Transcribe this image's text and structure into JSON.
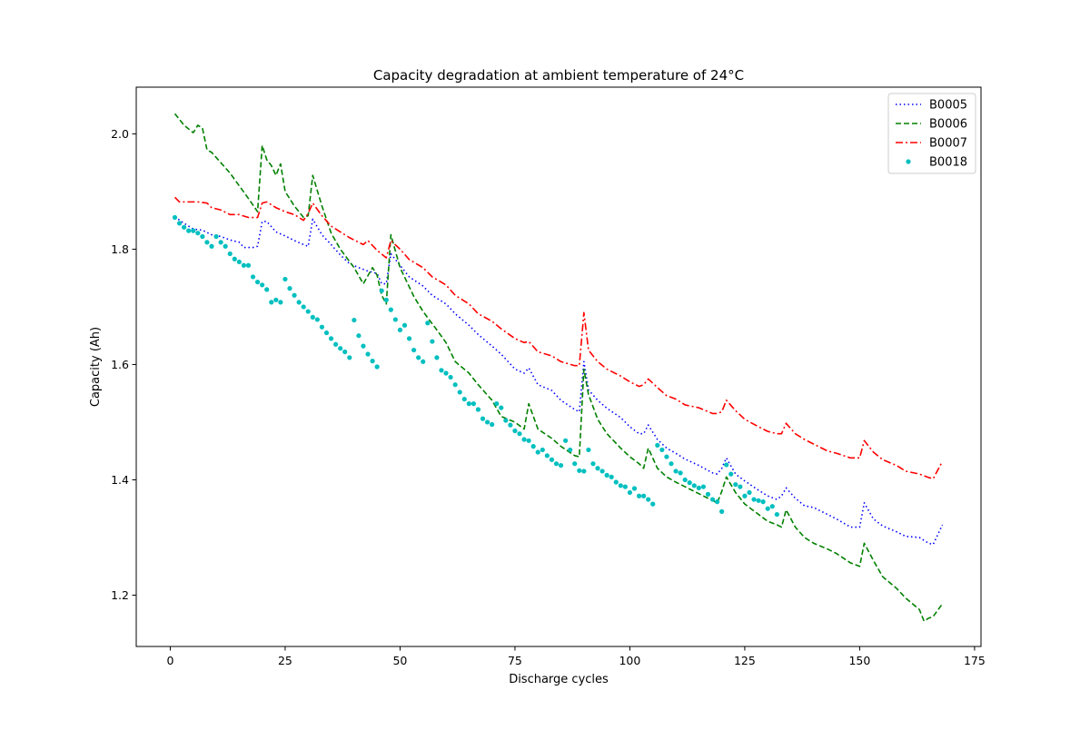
{
  "chart_data": {
    "type": "line",
    "title": "Capacity degradation at ambient temperature of 24°C",
    "xlabel": "Discharge cycles",
    "ylabel": "Capacity (Ah)",
    "xlim": [
      -7.4,
      176.4
    ],
    "ylim": [
      1.111,
      2.081
    ],
    "xticks": [
      0,
      25,
      50,
      75,
      100,
      125,
      150,
      175
    ],
    "yticks": [
      1.2,
      1.4,
      1.6,
      1.8,
      2.0
    ],
    "yticks_labels": [
      "1.2",
      "1.4",
      "1.6",
      "1.8",
      "2.0"
    ],
    "grid": false,
    "legend_position": "top-right",
    "series": [
      {
        "name": "B0005",
        "color": "#0000ff",
        "style": "dotted",
        "x": [
          1,
          3,
          5,
          7,
          9,
          11,
          13,
          15,
          16,
          18,
          19,
          20,
          21,
          23,
          25,
          27,
          29,
          30,
          31,
          33,
          35,
          37,
          39,
          41,
          43,
          45,
          46,
          47,
          48,
          50,
          52,
          55,
          57,
          60,
          62,
          65,
          67,
          70,
          72,
          75,
          77,
          78,
          80,
          83,
          85,
          88,
          89,
          90,
          91,
          93,
          95,
          98,
          100,
          102,
          103,
          104,
          106,
          108,
          110,
          112,
          115,
          118,
          119,
          120,
          121,
          123,
          125,
          128,
          130,
          132,
          133,
          134,
          136,
          138,
          140,
          143,
          145,
          148,
          150,
          151,
          153,
          155,
          158,
          160,
          163,
          165,
          166,
          168
        ],
        "y": [
          1.856,
          1.845,
          1.835,
          1.833,
          1.825,
          1.822,
          1.816,
          1.812,
          1.803,
          1.803,
          1.805,
          1.848,
          1.848,
          1.83,
          1.823,
          1.815,
          1.808,
          1.805,
          1.852,
          1.825,
          1.808,
          1.79,
          1.775,
          1.768,
          1.762,
          1.758,
          1.74,
          1.74,
          1.792,
          1.772,
          1.752,
          1.736,
          1.72,
          1.705,
          1.688,
          1.668,
          1.652,
          1.632,
          1.618,
          1.592,
          1.585,
          1.594,
          1.565,
          1.555,
          1.538,
          1.522,
          1.518,
          1.605,
          1.556,
          1.538,
          1.524,
          1.508,
          1.492,
          1.48,
          1.48,
          1.495,
          1.47,
          1.455,
          1.446,
          1.436,
          1.425,
          1.412,
          1.41,
          1.42,
          1.438,
          1.41,
          1.398,
          1.382,
          1.372,
          1.366,
          1.372,
          1.386,
          1.368,
          1.355,
          1.352,
          1.34,
          1.332,
          1.318,
          1.318,
          1.36,
          1.332,
          1.32,
          1.31,
          1.302,
          1.3,
          1.29,
          1.288,
          1.322
        ]
      },
      {
        "name": "B0006",
        "color": "#008000",
        "style": "dashed",
        "x": [
          1,
          2,
          3,
          5,
          6,
          7,
          8,
          9,
          11,
          13,
          15,
          17,
          19,
          20,
          21,
          22,
          23,
          24,
          25,
          27,
          29,
          30,
          31,
          33,
          35,
          37,
          40,
          42,
          44,
          45,
          46,
          47,
          48,
          50,
          53,
          55,
          58,
          60,
          62,
          65,
          67,
          70,
          72,
          75,
          77,
          78,
          80,
          83,
          85,
          88,
          89,
          90,
          91,
          93,
          95,
          98,
          100,
          102,
          103,
          104,
          106,
          108,
          110,
          112,
          115,
          118,
          119,
          120,
          121,
          123,
          125,
          128,
          130,
          132,
          133,
          134,
          136,
          138,
          140,
          143,
          145,
          148,
          150,
          151,
          153,
          155,
          158,
          160,
          163,
          164,
          165,
          166,
          168
        ],
        "y": [
          2.035,
          2.025,
          2.015,
          2.002,
          2.015,
          2.01,
          1.972,
          1.968,
          1.95,
          1.932,
          1.91,
          1.888,
          1.865,
          1.98,
          1.955,
          1.945,
          1.928,
          1.948,
          1.9,
          1.875,
          1.855,
          1.858,
          1.928,
          1.875,
          1.828,
          1.8,
          1.768,
          1.74,
          1.768,
          1.755,
          1.72,
          1.705,
          1.825,
          1.768,
          1.718,
          1.692,
          1.66,
          1.638,
          1.605,
          1.585,
          1.565,
          1.538,
          1.51,
          1.5,
          1.488,
          1.532,
          1.488,
          1.472,
          1.458,
          1.442,
          1.44,
          1.592,
          1.548,
          1.505,
          1.48,
          1.455,
          1.44,
          1.428,
          1.42,
          1.455,
          1.42,
          1.405,
          1.396,
          1.388,
          1.376,
          1.364,
          1.36,
          1.38,
          1.405,
          1.378,
          1.358,
          1.34,
          1.328,
          1.322,
          1.318,
          1.348,
          1.318,
          1.3,
          1.29,
          1.28,
          1.272,
          1.256,
          1.25,
          1.29,
          1.26,
          1.232,
          1.212,
          1.195,
          1.175,
          1.155,
          1.16,
          1.163,
          1.185
        ]
      },
      {
        "name": "B0007",
        "color": "#ff0000",
        "style": "dashdot",
        "x": [
          1,
          2,
          4,
          6,
          8,
          9,
          11,
          13,
          15,
          17,
          19,
          20,
          21,
          23,
          25,
          27,
          29,
          30,
          31,
          33,
          35,
          37,
          39,
          41,
          42,
          43,
          45,
          47,
          48,
          50,
          52,
          55,
          57,
          60,
          62,
          65,
          67,
          70,
          72,
          75,
          77,
          78,
          80,
          83,
          85,
          88,
          89,
          90,
          91,
          93,
          95,
          98,
          100,
          102,
          103,
          104,
          106,
          108,
          110,
          112,
          115,
          118,
          119,
          120,
          121,
          123,
          125,
          128,
          130,
          132,
          133,
          134,
          136,
          138,
          140,
          143,
          145,
          148,
          150,
          151,
          153,
          155,
          158,
          160,
          163,
          165,
          166,
          168
        ],
        "y": [
          1.89,
          1.882,
          1.882,
          1.882,
          1.88,
          1.872,
          1.868,
          1.86,
          1.86,
          1.855,
          1.855,
          1.88,
          1.882,
          1.872,
          1.865,
          1.86,
          1.85,
          1.862,
          1.88,
          1.858,
          1.84,
          1.83,
          1.82,
          1.812,
          1.808,
          1.815,
          1.798,
          1.785,
          1.815,
          1.8,
          1.782,
          1.768,
          1.752,
          1.738,
          1.72,
          1.705,
          1.688,
          1.675,
          1.662,
          1.645,
          1.638,
          1.64,
          1.622,
          1.615,
          1.605,
          1.598,
          1.598,
          1.69,
          1.625,
          1.605,
          1.592,
          1.58,
          1.57,
          1.562,
          1.565,
          1.575,
          1.56,
          1.546,
          1.54,
          1.53,
          1.525,
          1.515,
          1.515,
          1.518,
          1.538,
          1.52,
          1.505,
          1.492,
          1.484,
          1.48,
          1.48,
          1.498,
          1.48,
          1.47,
          1.462,
          1.45,
          1.446,
          1.438,
          1.438,
          1.468,
          1.448,
          1.435,
          1.425,
          1.415,
          1.41,
          1.404,
          1.402,
          1.432
        ]
      },
      {
        "name": "B0018",
        "color": "#00bfbf",
        "style": "points",
        "x": [
          1,
          2,
          3,
          4,
          5,
          6,
          7,
          8,
          9,
          10,
          11,
          12,
          13,
          14,
          15,
          16,
          17,
          18,
          19,
          20,
          21,
          22,
          23,
          24,
          25,
          26,
          27,
          28,
          29,
          30,
          31,
          32,
          33,
          34,
          35,
          36,
          37,
          38,
          39,
          40,
          41,
          42,
          43,
          44,
          45,
          46,
          47,
          48,
          49,
          50,
          51,
          52,
          53,
          54,
          55,
          56,
          57,
          58,
          59,
          60,
          61,
          62,
          63,
          64,
          65,
          66,
          67,
          68,
          69,
          70,
          71,
          72,
          73,
          74,
          75,
          76,
          77,
          78,
          79,
          80,
          81,
          82,
          83,
          84,
          85,
          86,
          87,
          88,
          89,
          90,
          91,
          92,
          93,
          94,
          95,
          96,
          97,
          98,
          99,
          100,
          101,
          102,
          103,
          104,
          105,
          106,
          107,
          108,
          109,
          110,
          111,
          112,
          113,
          114,
          115,
          116,
          117,
          118,
          119,
          120,
          121,
          122,
          123,
          124,
          125,
          126,
          127,
          128,
          129,
          130,
          131,
          132
        ],
        "y": [
          1.855,
          1.845,
          1.838,
          1.832,
          1.832,
          1.828,
          1.822,
          1.812,
          1.805,
          1.822,
          1.812,
          1.805,
          1.792,
          1.783,
          1.778,
          1.772,
          1.772,
          1.752,
          1.743,
          1.738,
          1.73,
          1.708,
          1.712,
          1.708,
          1.748,
          1.732,
          1.72,
          1.708,
          1.7,
          1.692,
          1.682,
          1.678,
          1.665,
          1.655,
          1.645,
          1.635,
          1.628,
          1.622,
          1.612,
          1.677,
          1.65,
          1.632,
          1.618,
          1.606,
          1.596,
          1.728,
          1.712,
          1.695,
          1.678,
          1.66,
          1.668,
          1.645,
          1.625,
          1.612,
          1.605,
          1.672,
          1.64,
          1.612,
          1.59,
          1.585,
          1.578,
          1.565,
          1.552,
          1.54,
          1.532,
          1.532,
          1.522,
          1.506,
          1.5,
          1.496,
          1.532,
          1.525,
          1.503,
          1.495,
          1.485,
          1.48,
          1.47,
          1.468,
          1.458,
          1.448,
          1.452,
          1.442,
          1.435,
          1.428,
          1.425,
          1.468,
          1.452,
          1.428,
          1.416,
          1.415,
          1.452,
          1.428,
          1.42,
          1.415,
          1.408,
          1.405,
          1.396,
          1.39,
          1.388,
          1.378,
          1.385,
          1.372,
          1.372,
          1.366,
          1.358,
          1.46,
          1.452,
          1.44,
          1.428,
          1.415,
          1.412,
          1.4,
          1.395,
          1.39,
          1.386,
          1.388,
          1.375,
          1.366,
          1.362,
          1.345,
          1.426,
          1.41,
          1.392,
          1.388,
          1.372,
          1.378,
          1.366,
          1.364,
          1.362,
          1.35,
          1.354,
          1.34
        ]
      }
    ]
  }
}
